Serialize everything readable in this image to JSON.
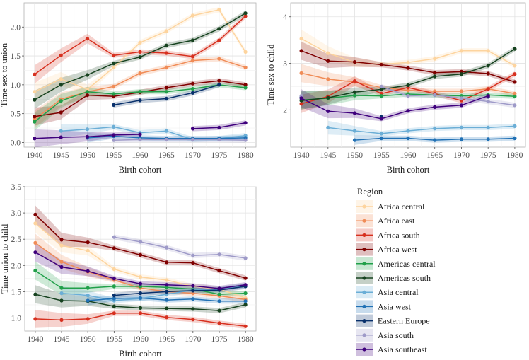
{
  "legend": {
    "title": "Region",
    "entries": [
      {
        "name": "Africa central",
        "color": "#fdd49e"
      },
      {
        "name": "Africa east",
        "color": "#f08c57"
      },
      {
        "name": "Africa south",
        "color": "#d7301f"
      },
      {
        "name": "Africa west",
        "color": "#7f0000"
      },
      {
        "name": "Americas central",
        "color": "#21a04a"
      },
      {
        "name": "Americas south",
        "color": "#16421f"
      },
      {
        "name": "Asia central",
        "color": "#6baed6"
      },
      {
        "name": "Asia west",
        "color": "#2171b5"
      },
      {
        "name": "Eastern Europe",
        "color": "#08306b"
      },
      {
        "name": "Asia south",
        "color": "#9e9ac8"
      },
      {
        "name": "Asia southeast",
        "color": "#3f007d"
      }
    ]
  },
  "chart_data": [
    {
      "type": "line",
      "xlabel": "Birth cohort",
      "ylabel": "Time sex to union",
      "x": [
        1940,
        1945,
        1950,
        1955,
        1960,
        1965,
        1970,
        1975,
        1980
      ],
      "xlim": [
        1938,
        1982
      ],
      "ylim": [
        -0.08,
        2.42
      ],
      "yticks": [
        0.0,
        0.5,
        1.0,
        1.5,
        2.0
      ],
      "ytick_labels": [
        "0.0",
        "0.5",
        "1.0",
        "1.5",
        "2.0"
      ],
      "series": [
        {
          "name": "Africa central",
          "values": [
            0.88,
            1.1,
            0.92,
            1.3,
            1.73,
            1.93,
            2.2,
            2.3,
            1.57
          ]
        },
        {
          "name": "Africa east",
          "values": [
            0.4,
            0.75,
            0.88,
            0.97,
            1.2,
            1.3,
            1.42,
            1.45,
            1.3
          ]
        },
        {
          "name": "Africa south",
          "values": [
            1.18,
            1.51,
            1.8,
            1.51,
            1.57,
            1.55,
            1.49,
            1.77,
            2.19
          ]
        },
        {
          "name": "Africa west",
          "values": [
            0.45,
            0.52,
            0.82,
            0.8,
            0.87,
            0.95,
            1.02,
            1.07,
            1.0
          ]
        },
        {
          "name": "Americas central",
          "values": [
            0.36,
            0.72,
            0.88,
            0.84,
            0.88,
            0.88,
            0.93,
            1.0,
            0.95
          ]
        },
        {
          "name": "Americas south",
          "values": [
            0.74,
            1.0,
            1.17,
            1.37,
            1.48,
            1.68,
            1.77,
            1.97,
            2.24
          ]
        },
        {
          "name": "Asia central",
          "values": [
            null,
            0.2,
            0.23,
            0.27,
            0.17,
            0.2,
            0.05,
            0.07,
            0.12
          ]
        },
        {
          "name": "Asia west",
          "values": [
            null,
            null,
            0.08,
            0.11,
            0.08,
            0.07,
            0.07,
            0.07,
            0.08
          ]
        },
        {
          "name": "Eastern Europe",
          "values": [
            null,
            null,
            null,
            0.65,
            0.73,
            0.76,
            0.86,
            1.0,
            null
          ]
        },
        {
          "name": "Asia south",
          "values": [
            null,
            null,
            null,
            0.04,
            0.05,
            0.05,
            0.05,
            0.05,
            0.04
          ]
        },
        {
          "name": "Asia southeast",
          "values": [
            0.07,
            0.09,
            0.1,
            0.13,
            0.14,
            null,
            0.24,
            0.26,
            0.34
          ]
        }
      ]
    },
    {
      "type": "line",
      "xlabel": "Birth cohort",
      "ylabel": "Time sex to child",
      "x": [
        1940,
        1945,
        1950,
        1955,
        1960,
        1965,
        1970,
        1975,
        1980
      ],
      "xlim": [
        1938,
        1982
      ],
      "ylim": [
        1.2,
        4.3
      ],
      "yticks": [
        2,
        3,
        4
      ],
      "ytick_labels": [
        "2",
        "3",
        "4"
      ],
      "series": [
        {
          "name": "Africa central",
          "values": [
            3.53,
            3.22,
            3.02,
            2.98,
            3.02,
            3.1,
            3.27,
            3.27,
            2.95
          ]
        },
        {
          "name": "Africa east",
          "values": [
            2.79,
            2.66,
            2.6,
            2.48,
            2.42,
            2.4,
            2.4,
            2.45,
            2.35
          ]
        },
        {
          "name": "Africa south",
          "values": [
            2.13,
            2.29,
            2.62,
            2.35,
            2.48,
            2.35,
            2.2,
            2.45,
            2.77
          ]
        },
        {
          "name": "Africa west",
          "values": [
            3.27,
            3.05,
            3.03,
            2.97,
            2.9,
            2.8,
            2.82,
            2.78,
            2.6
          ]
        },
        {
          "name": "Americas central",
          "values": [
            2.21,
            2.25,
            2.31,
            2.3,
            2.34,
            2.32,
            2.3,
            2.32,
            2.29
          ]
        },
        {
          "name": "Americas south",
          "values": [
            2.2,
            2.26,
            2.38,
            2.44,
            2.53,
            2.72,
            2.77,
            2.95,
            3.31
          ]
        },
        {
          "name": "Asia central",
          "values": [
            null,
            1.62,
            1.55,
            1.49,
            1.55,
            1.6,
            1.62,
            1.62,
            1.65
          ]
        },
        {
          "name": "Asia west",
          "values": [
            null,
            null,
            1.35,
            1.39,
            1.39,
            1.35,
            1.37,
            1.37,
            1.39
          ]
        },
        {
          "name": "Eastern Europe",
          "values": [
            2.27,
            null,
            null,
            1.85,
            null,
            null,
            null,
            2.28,
            null
          ]
        },
        {
          "name": "Asia south",
          "values": [
            2.3,
            null,
            null,
            2.5,
            2.3,
            2.32,
            2.25,
            2.18,
            2.1
          ]
        },
        {
          "name": "Asia southeast",
          "values": [
            2.25,
            1.97,
            1.93,
            1.81,
            1.98,
            2.06,
            2.1,
            2.3,
            null
          ]
        }
      ]
    },
    {
      "type": "line",
      "xlabel": "Birth cohort",
      "ylabel": "Time union to child",
      "x": [
        1940,
        1945,
        1950,
        1955,
        1960,
        1965,
        1970,
        1975,
        1980
      ],
      "xlim": [
        1938,
        1982
      ],
      "ylim": [
        0.75,
        3.5
      ],
      "yticks": [
        1.0,
        1.5,
        2.0,
        2.5,
        3.0,
        3.5
      ],
      "ytick_labels": [
        "1.0",
        "1.5",
        "2.0",
        "2.5",
        "3.0",
        "3.5"
      ],
      "series": [
        {
          "name": "Africa central",
          "values": [
            2.8,
            2.38,
            2.28,
            1.93,
            1.78,
            1.72,
            1.6,
            1.55,
            1.38
          ]
        },
        {
          "name": "Africa east",
          "values": [
            2.43,
            2.07,
            1.88,
            1.72,
            1.57,
            1.5,
            1.47,
            1.42,
            1.35
          ]
        },
        {
          "name": "Africa south",
          "values": [
            0.98,
            0.96,
            0.98,
            1.09,
            1.09,
            1.01,
            0.97,
            0.9,
            0.84
          ]
        },
        {
          "name": "Africa west",
          "values": [
            2.97,
            2.49,
            2.44,
            2.33,
            2.2,
            2.06,
            2.05,
            1.9,
            1.76
          ]
        },
        {
          "name": "Americas central",
          "values": [
            1.9,
            1.57,
            1.57,
            1.6,
            1.6,
            1.58,
            1.55,
            1.45,
            1.47
          ]
        },
        {
          "name": "Americas south",
          "values": [
            1.45,
            1.33,
            1.32,
            1.22,
            1.19,
            1.18,
            1.17,
            1.14,
            1.25
          ]
        },
        {
          "name": "Asia central",
          "values": [
            null,
            1.47,
            1.43,
            1.33,
            1.37,
            1.45,
            1.53,
            1.55,
            1.61
          ]
        },
        {
          "name": "Asia west",
          "values": [
            null,
            null,
            1.33,
            1.37,
            1.38,
            1.34,
            1.36,
            1.32,
            1.32
          ]
        },
        {
          "name": "Eastern Europe",
          "values": [
            null,
            null,
            null,
            1.43,
            1.47,
            1.5,
            1.52,
            1.53,
            1.6
          ]
        },
        {
          "name": "Asia south",
          "values": [
            null,
            null,
            null,
            2.54,
            2.45,
            2.34,
            2.19,
            2.21,
            2.14
          ]
        },
        {
          "name": "Asia southeast",
          "values": [
            2.25,
            1.97,
            1.89,
            1.75,
            1.65,
            1.63,
            1.61,
            1.56,
            1.63
          ]
        }
      ]
    }
  ]
}
